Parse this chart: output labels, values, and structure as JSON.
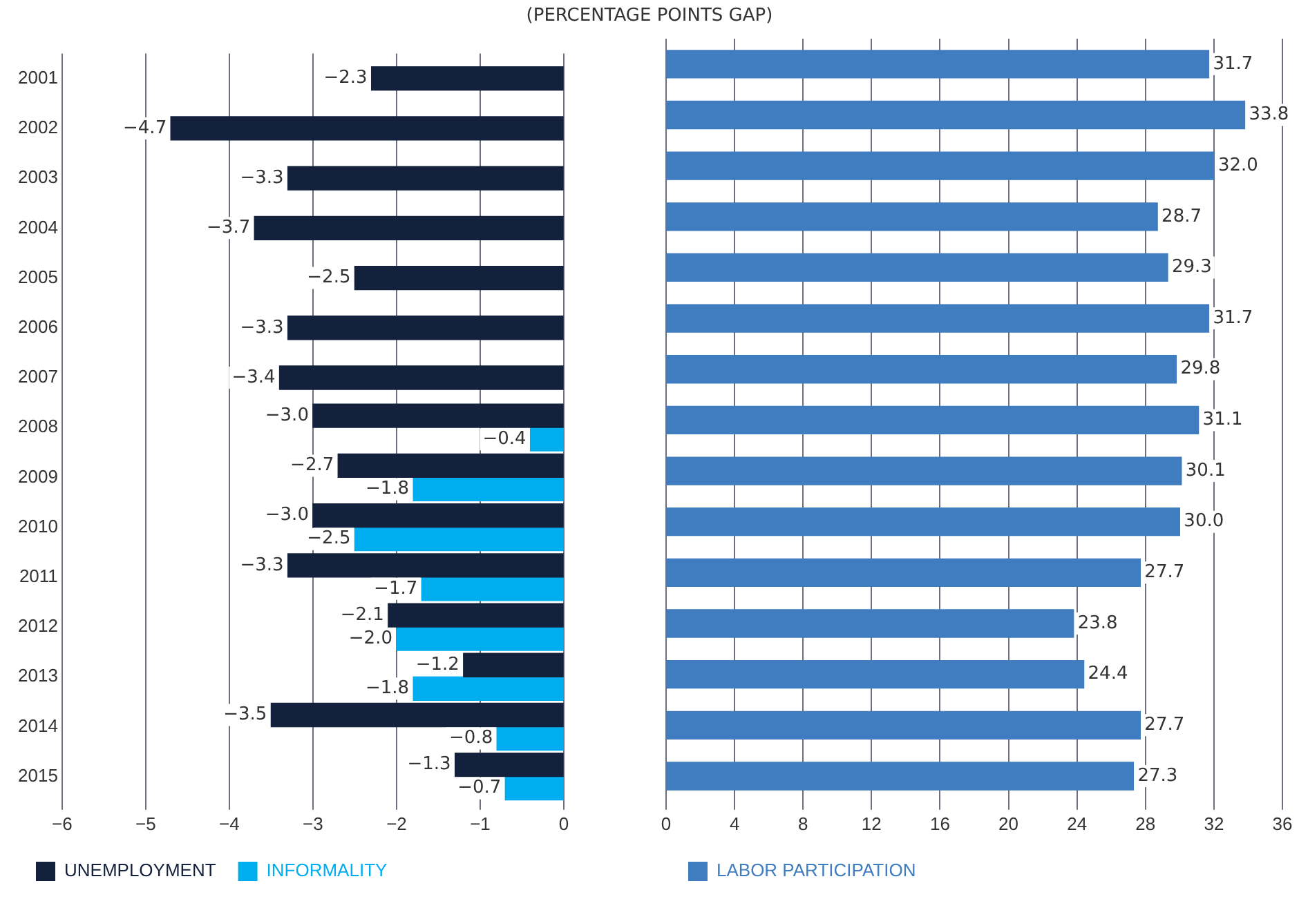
{
  "chart_data": [
    {
      "type": "bar",
      "orientation": "horizontal",
      "title": "(PERCENTAGE POINTS GAP)",
      "categories": [
        "2001",
        "2002",
        "2003",
        "2004",
        "2005",
        "2006",
        "2007",
        "2008",
        "2009",
        "2010",
        "2011",
        "2012",
        "2013",
        "2014",
        "2015"
      ],
      "series": [
        {
          "name": "UNEMPLOYMENT",
          "color": "#14213d",
          "values": [
            -2.3,
            -4.7,
            -3.3,
            -3.7,
            -2.5,
            -3.3,
            -3.4,
            -3.0,
            -2.7,
            -3.0,
            -3.3,
            -2.1,
            -1.2,
            -3.5,
            -1.3
          ],
          "value_labels": [
            "−2.3",
            "−4.7",
            "−3.3",
            "−3.7",
            "−2.5",
            "−3.3",
            "−3.4",
            "−3.0",
            "−2.7",
            "−3.0",
            "−3.3",
            "−2.1",
            "−1.2",
            "−3.5",
            "−1.3"
          ]
        },
        {
          "name": "INFORMALITY",
          "color": "#00aeef",
          "values": [
            null,
            null,
            null,
            null,
            null,
            null,
            null,
            -0.4,
            -1.8,
            -2.5,
            -1.7,
            -2.0,
            -1.8,
            -0.8,
            -0.7
          ],
          "value_labels": [
            null,
            null,
            null,
            null,
            null,
            null,
            null,
            "−0.4",
            "−1.8",
            "−2.5",
            "−1.7",
            "−2.0",
            "−1.8",
            "−0.8",
            "−0.7"
          ]
        }
      ],
      "xlim": [
        -6,
        0
      ],
      "xticks": [
        -6,
        -5,
        -4,
        -3,
        -2,
        -1,
        0
      ],
      "grid": "x",
      "legend": "bottom left"
    },
    {
      "type": "bar",
      "orientation": "horizontal",
      "categories": [
        "2001",
        "2002",
        "2003",
        "2004",
        "2005",
        "2006",
        "2007",
        "2008",
        "2009",
        "2010",
        "2011",
        "2012",
        "2013",
        "2014",
        "2015"
      ],
      "series": [
        {
          "name": "LABOR PARTICIPATION",
          "color": "#3f7cc0",
          "values": [
            31.7,
            33.8,
            32.0,
            28.7,
            29.3,
            31.7,
            29.8,
            31.1,
            30.1,
            30.0,
            27.7,
            23.8,
            24.4,
            27.7,
            27.3
          ],
          "value_labels": [
            "31.7",
            "33.8",
            "32.0",
            "28.7",
            "29.3",
            "31.7",
            "29.8",
            "31.1",
            "30.1",
            "30.0",
            "27.7",
            "23.8",
            "24.4",
            "27.7",
            "27.3"
          ]
        }
      ],
      "xlim": [
        0,
        36
      ],
      "xticks": [
        0,
        4,
        8,
        12,
        16,
        20,
        24,
        28,
        32,
        36
      ],
      "grid": "x",
      "legend": "bottom left",
      "tick_labels": "x"
    }
  ]
}
